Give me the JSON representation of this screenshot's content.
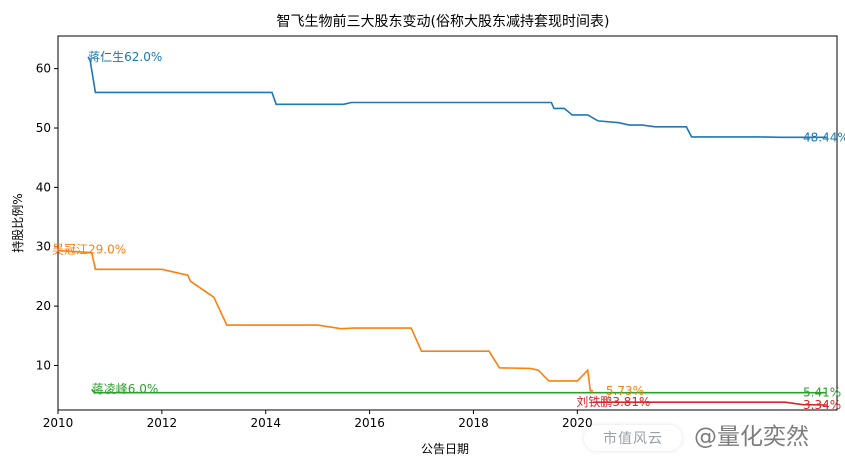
{
  "chart_data": {
    "type": "line",
    "title": "智飞生物前三大股东变动(俗称大股东减持套现时间表)",
    "xlabel": "公告日期",
    "ylabel": "持股比例%",
    "xlim": [
      2010.0,
      2025.0
    ],
    "ylim": [
      2.5,
      65.5
    ],
    "x_ticks": [
      2010,
      2012,
      2014,
      2016,
      2018,
      2020
    ],
    "x_tick_labels": [
      "2010",
      "2012",
      "2014",
      "2016",
      "2018",
      "2020"
    ],
    "y_ticks": [
      10,
      20,
      30,
      40,
      50,
      60
    ],
    "y_tick_labels": [
      "10",
      "20",
      "30",
      "40",
      "50",
      "60"
    ],
    "grid": false,
    "series": [
      {
        "color": "#1f77b4",
        "x": [
          2010.58,
          2010.62,
          2010.72,
          2014.12,
          2014.2,
          2015.5,
          2015.65,
          2019.5,
          2019.55,
          2019.75,
          2019.9,
          2020.2,
          2020.4,
          2020.8,
          2021.0,
          2021.25,
          2021.5,
          2022.1,
          2022.2,
          2023.5,
          2023.9,
          2024.8
        ],
        "y": [
          62.0,
          61.3,
          56.0,
          56.0,
          54.0,
          54.0,
          54.3,
          54.3,
          53.3,
          53.3,
          52.2,
          52.2,
          51.2,
          50.9,
          50.5,
          50.5,
          50.2,
          50.2,
          48.5,
          48.5,
          48.44,
          48.44
        ],
        "start_label": "蒋仁生62.0%",
        "end_label": "48.44%"
      },
      {
        "color": "#ff7f0e",
        "x": [
          2009.75,
          2010.65,
          2010.72,
          2012.0,
          2012.2,
          2012.5,
          2012.55,
          2012.95,
          2013.0,
          2013.25,
          2015.0,
          2015.45,
          2015.7,
          2016.8,
          2017.0,
          2018.3,
          2018.5,
          2019.1,
          2019.25,
          2019.45,
          2020.0,
          2020.2,
          2020.25,
          2020.3
        ],
        "y": [
          29.5,
          29.0,
          26.2,
          26.2,
          25.8,
          25.2,
          24.2,
          21.8,
          21.5,
          16.8,
          16.8,
          16.2,
          16.3,
          16.3,
          12.4,
          12.4,
          9.6,
          9.5,
          9.2,
          7.4,
          7.4,
          9.2,
          5.73,
          5.73
        ],
        "start_label": "吴冠江29.0%",
        "end_label": "5.73%"
      },
      {
        "color": "#2ca02c",
        "x": [
          2010.65,
          2010.7,
          2024.8
        ],
        "y": [
          6.0,
          5.41,
          5.41
        ],
        "start_label": "蒋凌峰6.0%",
        "end_label": "5.41%"
      },
      {
        "color": "#d62728",
        "x": [
          2020.3,
          2020.5,
          2024.0,
          2024.35,
          2024.8
        ],
        "y": [
          3.81,
          3.81,
          3.81,
          3.4,
          3.34
        ],
        "start_label": "刘铁鹏3.81%",
        "end_label": "3.34%"
      }
    ]
  },
  "watermark": {
    "box_text": "市值风云",
    "brand_text": "@量化奕然"
  }
}
